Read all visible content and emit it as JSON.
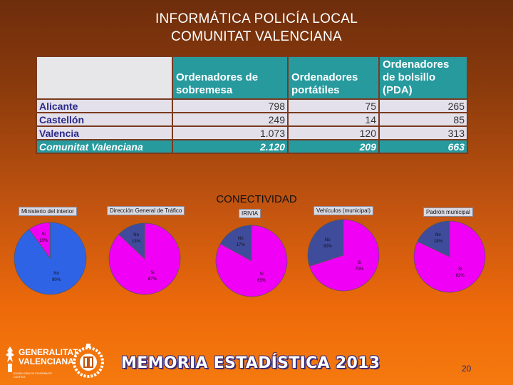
{
  "title": {
    "line1": "INFORMÁTICA POLICÍA LOCAL",
    "line2": "COMUNITAT VALENCIANA"
  },
  "table": {
    "headers": [
      "Ordenadores de sobremesa",
      "Ordenadores portátiles",
      "Ordenadores de bolsillo (PDA)"
    ],
    "header_lines": [
      [
        "Ordenadores de",
        "sobremesa"
      ],
      [
        "Ordenadores",
        "portátiles"
      ],
      [
        "Ordenadores",
        "de bolsillo",
        "(PDA)"
      ]
    ],
    "rows": [
      {
        "label": "Alicante",
        "values": [
          "798",
          "75",
          "265"
        ]
      },
      {
        "label": "Castellón",
        "values": [
          "249",
          "14",
          "85"
        ]
      },
      {
        "label": "Valencia",
        "values": [
          "1.073",
          "120",
          "313"
        ]
      }
    ],
    "total": {
      "label": "Comunitat Valenciana",
      "values": [
        "2.120",
        "209",
        "663"
      ]
    }
  },
  "section_title": "CONECTIVIDAD",
  "colors": {
    "blue": "#2f63e6",
    "magenta": "#f000f4",
    "navy": "#3f4c9c",
    "teal": "#279a9e"
  },
  "chart_data": [
    {
      "type": "pie",
      "title": "Ministerio del interior",
      "slices": [
        {
          "label": "Si",
          "value": 10,
          "text": "10%"
        },
        {
          "label": "No",
          "value": 90,
          "text": "90%"
        }
      ]
    },
    {
      "type": "pie",
      "title": "Dirección General de Tráfico",
      "slices": [
        {
          "label": "No",
          "value": 13,
          "text": "13%"
        },
        {
          "label": "Si",
          "value": 87,
          "text": "87%"
        }
      ]
    },
    {
      "type": "pie",
      "title": "IRIVIA",
      "slices": [
        {
          "label": "No",
          "value": 17,
          "text": "17%"
        },
        {
          "label": "Si",
          "value": 83,
          "text": "83%"
        }
      ]
    },
    {
      "type": "pie",
      "title": "Vehículos (municipal)",
      "slices": [
        {
          "label": "No",
          "value": 30,
          "text": "30%"
        },
        {
          "label": "Si",
          "value": 70,
          "text": "70%"
        }
      ]
    },
    {
      "type": "pie",
      "title": "Padrón municipal",
      "slices": [
        {
          "label": "No",
          "value": 18,
          "text": "18%"
        },
        {
          "label": "Si",
          "value": 82,
          "text": "82%"
        }
      ]
    }
  ],
  "footer": {
    "title": "MEMORIA ESTADÍSTICA 2013",
    "page": "20"
  },
  "logo": {
    "line1": "GENERALITAT",
    "line2": "VALENCIANA",
    "small1": "CONSELLERIA DE GOVERNACIÓ",
    "small2": "I JUSTÍCIA"
  }
}
